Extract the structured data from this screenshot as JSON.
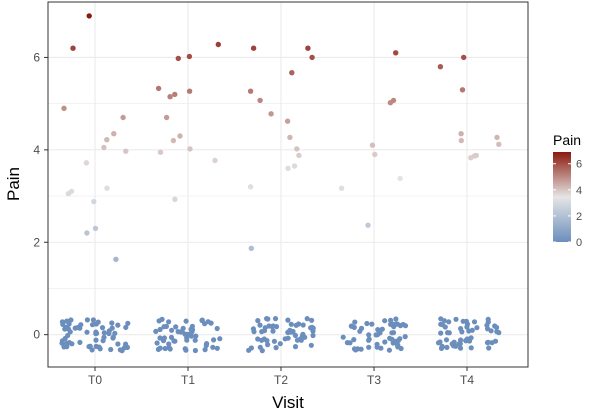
{
  "chart_data": {
    "type": "scatter",
    "title": "",
    "xlabel": "Visit",
    "ylabel": "Pain",
    "categories": [
      "T0",
      "T1",
      "T2",
      "T3",
      "T4"
    ],
    "ylim": [
      -0.7,
      7.2
    ],
    "yticks": [
      0,
      2,
      4,
      6
    ],
    "grid": true,
    "legend": {
      "title": "Pain",
      "placement": "right",
      "labels": [
        "6",
        "4",
        "2",
        "0"
      ],
      "values": [
        6,
        4,
        2,
        0
      ],
      "range": [
        0,
        6.9
      ],
      "low_color": "#6b8ebd",
      "mid_color": "#e5e5e5",
      "high_color": "#8b1a0e"
    },
    "colors": {
      "panel_border": "#333333",
      "grid": "#ebebeb"
    },
    "points": [
      {
        "x": 1,
        "y": 6.9
      },
      {
        "x": 1,
        "y": 6.2
      },
      {
        "x": 1,
        "y": 4.9
      },
      {
        "x": 1,
        "y": 4.7
      },
      {
        "x": 1,
        "y": 4.35
      },
      {
        "x": 1,
        "y": 4.22
      },
      {
        "x": 1,
        "y": 4.05
      },
      {
        "x": 1,
        "y": 3.97
      },
      {
        "x": 1,
        "y": 3.72
      },
      {
        "x": 1,
        "y": 3.17
      },
      {
        "x": 1,
        "y": 3.1
      },
      {
        "x": 1,
        "y": 3.05
      },
      {
        "x": 1,
        "y": 2.88
      },
      {
        "x": 1,
        "y": 2.3
      },
      {
        "x": 1,
        "y": 2.2
      },
      {
        "x": 1,
        "y": 1.63
      },
      {
        "x": 2,
        "y": 6.28
      },
      {
        "x": 2,
        "y": 6.02
      },
      {
        "x": 2,
        "y": 5.98
      },
      {
        "x": 2,
        "y": 5.33
      },
      {
        "x": 2,
        "y": 5.27
      },
      {
        "x": 2,
        "y": 5.2
      },
      {
        "x": 2,
        "y": 5.15
      },
      {
        "x": 2,
        "y": 4.7
      },
      {
        "x": 2,
        "y": 4.3
      },
      {
        "x": 2,
        "y": 4.2
      },
      {
        "x": 2,
        "y": 4.02
      },
      {
        "x": 2,
        "y": 3.95
      },
      {
        "x": 2,
        "y": 3.77
      },
      {
        "x": 2,
        "y": 2.93
      },
      {
        "x": 3,
        "y": 6.2
      },
      {
        "x": 3,
        "y": 6.2
      },
      {
        "x": 3,
        "y": 6.0
      },
      {
        "x": 3,
        "y": 5.67
      },
      {
        "x": 3,
        "y": 5.27
      },
      {
        "x": 3,
        "y": 5.07
      },
      {
        "x": 3,
        "y": 4.78
      },
      {
        "x": 3,
        "y": 4.62
      },
      {
        "x": 3,
        "y": 4.27
      },
      {
        "x": 3,
        "y": 4.02
      },
      {
        "x": 3,
        "y": 3.88
      },
      {
        "x": 3,
        "y": 3.65
      },
      {
        "x": 3,
        "y": 3.6
      },
      {
        "x": 3,
        "y": 3.2
      },
      {
        "x": 3,
        "y": 1.87
      },
      {
        "x": 4,
        "y": 6.1
      },
      {
        "x": 4,
        "y": 5.07
      },
      {
        "x": 4,
        "y": 5.02
      },
      {
        "x": 4,
        "y": 4.1
      },
      {
        "x": 4,
        "y": 3.9
      },
      {
        "x": 4,
        "y": 3.38
      },
      {
        "x": 4,
        "y": 3.17
      },
      {
        "x": 4,
        "y": 2.37
      },
      {
        "x": 5,
        "y": 6.0
      },
      {
        "x": 5,
        "y": 5.8
      },
      {
        "x": 5,
        "y": 5.3
      },
      {
        "x": 5,
        "y": 4.35
      },
      {
        "x": 5,
        "y": 4.27
      },
      {
        "x": 5,
        "y": 4.2
      },
      {
        "x": 5,
        "y": 4.12
      },
      {
        "x": 5,
        "y": 3.88
      },
      {
        "x": 5,
        "y": 3.87
      },
      {
        "x": 5,
        "y": 3.83
      }
    ],
    "zero_cluster": {
      "y": 0,
      "y_spread": 0.35,
      "per_category": [
        60,
        55,
        55,
        55,
        55
      ]
    }
  }
}
